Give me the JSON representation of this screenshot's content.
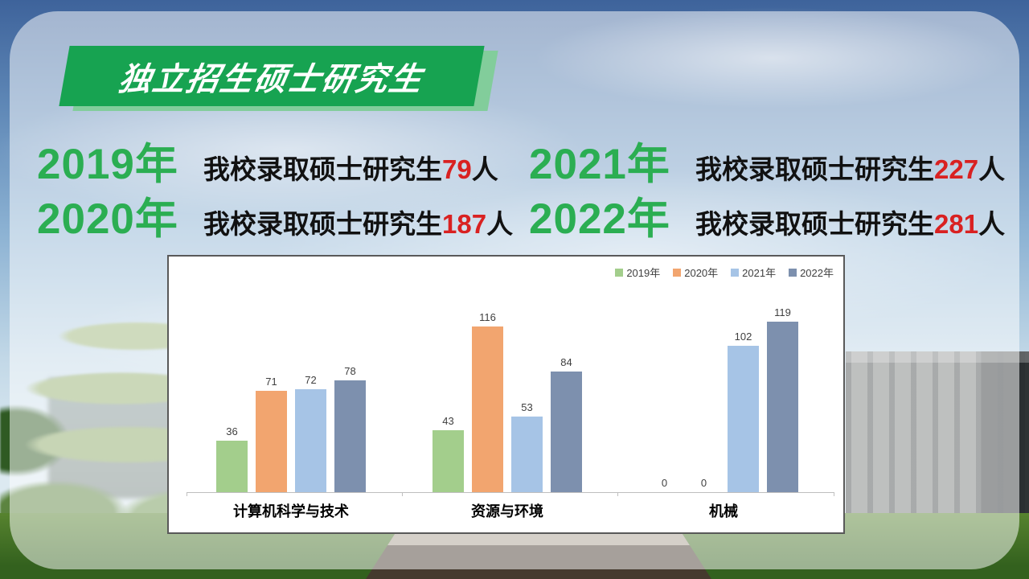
{
  "banner": {
    "title": "独立招生硕士研究生",
    "bg_color": "#17A351",
    "shadow_color": "#82CD9B"
  },
  "stats_note": "display order is row-major: left column then right column per row",
  "stats": [
    {
      "year": "2019年",
      "prefix": "我校录取硕士研究生",
      "count": "79",
      "suffix": "人"
    },
    {
      "year": "2021年",
      "prefix": "我校录取硕士研究生",
      "count": "227",
      "suffix": "人"
    },
    {
      "year": "2020年",
      "prefix": "我校录取硕士研究生",
      "count": "187",
      "suffix": "人"
    },
    {
      "year": "2022年",
      "prefix": "我校录取硕士研究生",
      "count": "281",
      "suffix": "人"
    }
  ],
  "colors": {
    "year_green": "#2BAE52",
    "count_red": "#D92121",
    "body_text": "#111111"
  },
  "chart_data": {
    "type": "bar",
    "title": "",
    "xlabel": "",
    "ylabel": "",
    "categories": [
      "计算机科学与技术",
      "资源与环境",
      "机械"
    ],
    "series": [
      {
        "name": "2019年",
        "color": "#A3CE8C",
        "values": [
          36,
          43,
          0
        ]
      },
      {
        "name": "2020年",
        "color": "#F2A56F",
        "values": [
          71,
          116,
          0
        ]
      },
      {
        "name": "2021年",
        "color": "#A6C4E6",
        "values": [
          72,
          53,
          102
        ]
      },
      {
        "name": "2022年",
        "color": "#7D90AE",
        "values": [
          78,
          84,
          119
        ]
      }
    ],
    "ylim": [
      0,
      130
    ],
    "grid": false,
    "value_labels": true,
    "legend_position": "top-right"
  }
}
